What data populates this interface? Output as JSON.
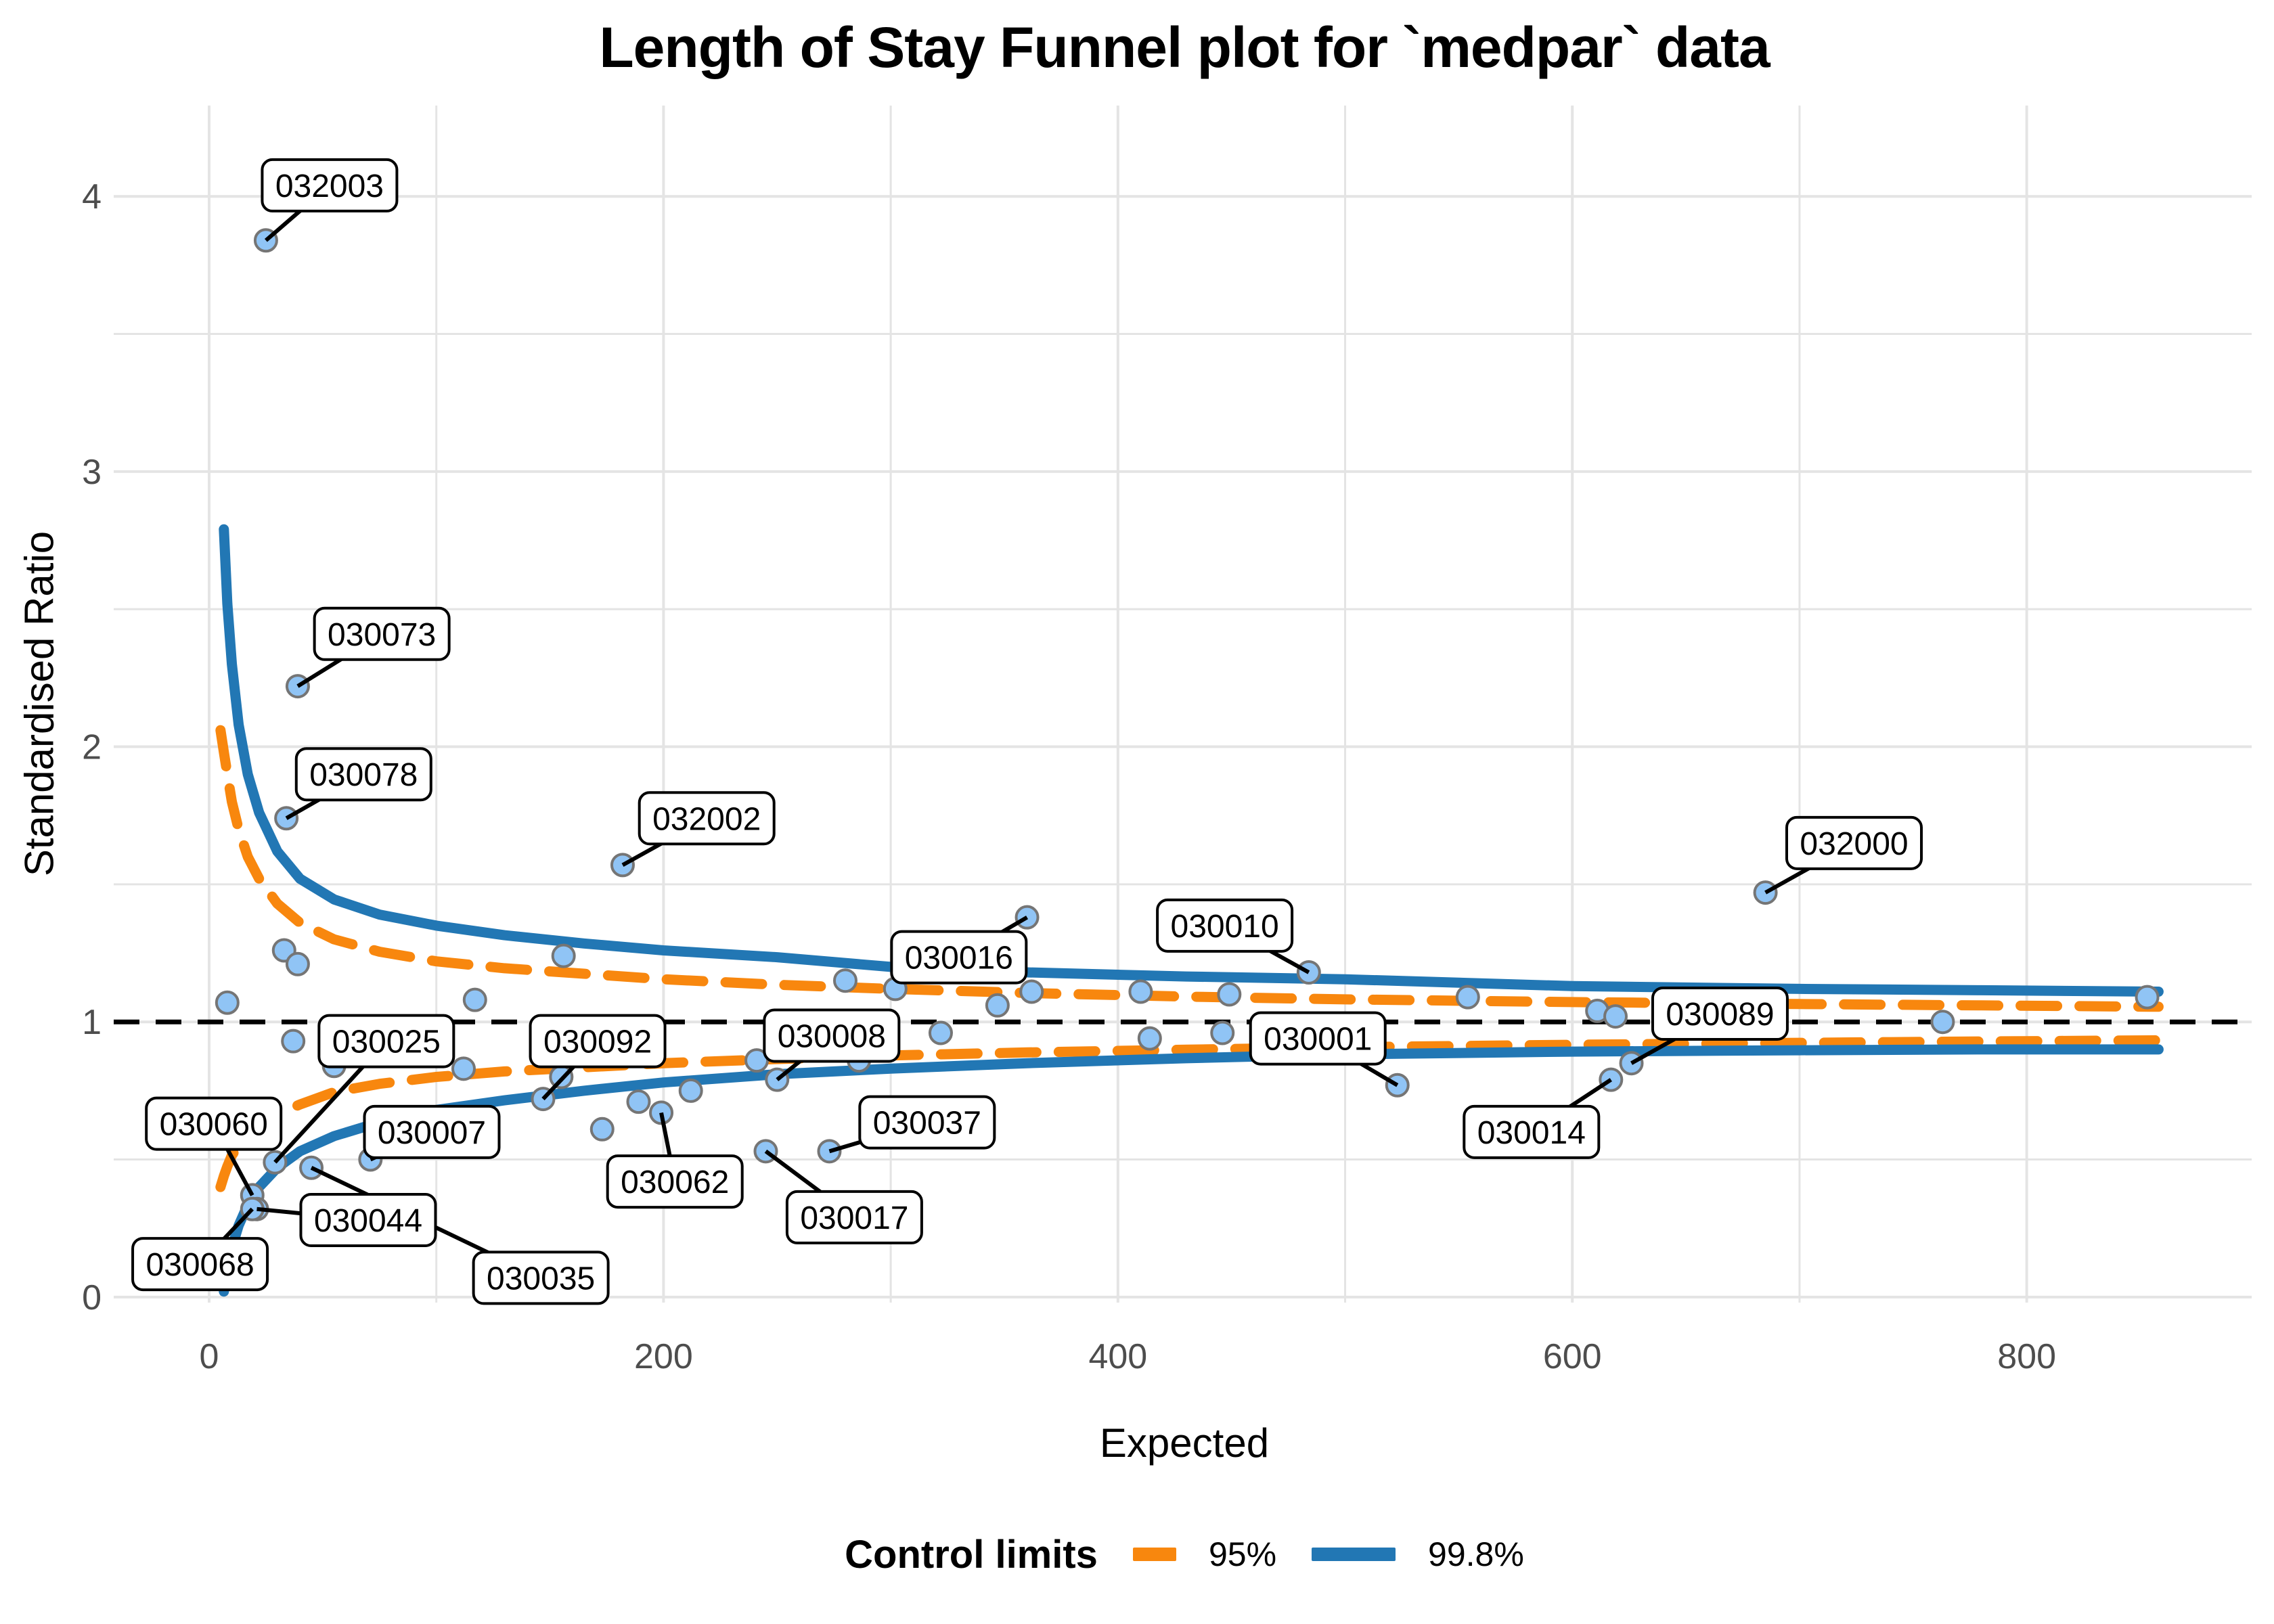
{
  "title": "Length of Stay Funnel plot for `medpar` data",
  "axes": {
    "x": {
      "label": "Expected",
      "ticks": [
        "0",
        "200",
        "400",
        "600",
        "800"
      ],
      "tick_values": [
        0,
        200,
        400,
        600,
        800
      ],
      "minor_ticks": [
        100,
        300,
        500,
        700
      ],
      "range": [
        -42,
        899
      ]
    },
    "y": {
      "label": "Standardised Ratio",
      "ticks": [
        "0",
        "1",
        "2",
        "3",
        "4"
      ],
      "tick_values": [
        0,
        1,
        2,
        3,
        4
      ],
      "minor_ticks": [
        0.5,
        1.5,
        2.5,
        3.5
      ],
      "range": [
        -0.02,
        4.33
      ]
    }
  },
  "legend": {
    "title": "Control limits",
    "items": [
      {
        "label": "95%",
        "color": "#F8870E",
        "pattern": "dashed"
      },
      {
        "label": "99.8%",
        "color": "#2277B4",
        "pattern": "solid"
      }
    ]
  },
  "style": {
    "point_fill": "#90C4F5",
    "point_stroke": "#757575",
    "grid_color": "#E4E4E4",
    "tick_text_color": "#4D4D4D",
    "reference_line_color": "#000000",
    "label_box_fill": "#FFFFFF",
    "label_box_stroke": "#000000"
  },
  "chart_data": {
    "type": "scatter",
    "title": "Length of Stay Funnel plot for `medpar` data",
    "xlabel": "Expected",
    "ylabel": "Standardised Ratio",
    "xlim": [
      -42,
      899
    ],
    "ylim": [
      -0.02,
      4.33
    ],
    "grid": true,
    "legend_position": "bottom",
    "reference_line_y": 1,
    "points": [
      {
        "id": "032003",
        "x": 25,
        "y": 3.84,
        "lx": 53,
        "ly": 4.04
      },
      {
        "id": "030073",
        "x": 39,
        "y": 2.22,
        "lx": 76,
        "ly": 2.41
      },
      {
        "id": "030078",
        "x": 34,
        "y": 1.74,
        "lx": 68,
        "ly": 1.9
      },
      {
        "id": "032002",
        "x": 182,
        "y": 1.57,
        "lx": 219,
        "ly": 1.74
      },
      {
        "id": "030016",
        "x": 360,
        "y": 1.38,
        "lx": 330,
        "ly": 1.235
      },
      {
        "id": "030010",
        "x": 484,
        "y": 1.18,
        "lx": 447,
        "ly": 1.35
      },
      {
        "id": "032000",
        "x": 685,
        "y": 1.47,
        "lx": 724,
        "ly": 1.65
      },
      {
        "id": "030025",
        "x": 29,
        "y": 0.49,
        "lx": 78,
        "ly": 0.93
      },
      {
        "id": "030092",
        "x": 147,
        "y": 0.72,
        "lx": 171,
        "ly": 0.93
      },
      {
        "id": "030008",
        "x": 250,
        "y": 0.79,
        "lx": 274,
        "ly": 0.95
      },
      {
        "id": "030001",
        "x": 523,
        "y": 0.77,
        "lx": 488,
        "ly": 0.94
      },
      {
        "id": "030089",
        "x": 626,
        "y": 0.85,
        "lx": 665,
        "ly": 1.03
      },
      {
        "id": "030060",
        "x": 19,
        "y": 0.37,
        "lx": 2,
        "ly": 0.63
      },
      {
        "id": "030007",
        "x": 71,
        "y": 0.5,
        "lx": 98,
        "ly": 0.6
      },
      {
        "id": "030037",
        "x": 273,
        "y": 0.53,
        "lx": 316,
        "ly": 0.635
      },
      {
        "id": "030014",
        "x": 617,
        "y": 0.79,
        "lx": 582,
        "ly": 0.6
      },
      {
        "id": "030062",
        "x": 199,
        "y": 0.67,
        "lx": 205,
        "ly": 0.42
      },
      {
        "id": "030017",
        "x": 245,
        "y": 0.53,
        "lx": 284,
        "ly": 0.29
      },
      {
        "id": "030044",
        "x": 21,
        "y": 0.32,
        "lx": 70,
        "ly": 0.28
      },
      {
        "id": "030035",
        "x": 45,
        "y": 0.47,
        "lx": 146,
        "ly": 0.07
      },
      {
        "id": "030068",
        "x": 19,
        "y": 0.32,
        "lx": -4,
        "ly": 0.12
      },
      {
        "id": null,
        "x": 8,
        "y": 1.07
      },
      {
        "id": null,
        "x": 33,
        "y": 1.26
      },
      {
        "id": null,
        "x": 39,
        "y": 1.21
      },
      {
        "id": null,
        "x": 37,
        "y": 0.93
      },
      {
        "id": null,
        "x": 55,
        "y": 0.84
      },
      {
        "id": null,
        "x": 112,
        "y": 0.83
      },
      {
        "id": null,
        "x": 117,
        "y": 1.08
      },
      {
        "id": null,
        "x": 156,
        "y": 1.24
      },
      {
        "id": null,
        "x": 155,
        "y": 0.8
      },
      {
        "id": null,
        "x": 173,
        "y": 0.61
      },
      {
        "id": null,
        "x": 189,
        "y": 0.71
      },
      {
        "id": null,
        "x": 212,
        "y": 0.75
      },
      {
        "id": null,
        "x": 241,
        "y": 0.86
      },
      {
        "id": null,
        "x": 286,
        "y": 0.86
      },
      {
        "id": null,
        "x": 280,
        "y": 1.15
      },
      {
        "id": null,
        "x": 302,
        "y": 1.12
      },
      {
        "id": null,
        "x": 322,
        "y": 0.96
      },
      {
        "id": null,
        "x": 347,
        "y": 1.06
      },
      {
        "id": null,
        "x": 362,
        "y": 1.11
      },
      {
        "id": null,
        "x": 410,
        "y": 1.11
      },
      {
        "id": null,
        "x": 414,
        "y": 0.94
      },
      {
        "id": null,
        "x": 446,
        "y": 0.96
      },
      {
        "id": null,
        "x": 449,
        "y": 1.1
      },
      {
        "id": null,
        "x": 554,
        "y": 1.09
      },
      {
        "id": null,
        "x": 611,
        "y": 1.04
      },
      {
        "id": null,
        "x": 619,
        "y": 1.02
      },
      {
        "id": null,
        "x": 763,
        "y": 1.0
      },
      {
        "id": null,
        "x": 853,
        "y": 1.09
      }
    ],
    "control_limits": [
      {
        "name": "95%",
        "pattern": "dashed",
        "color": "#F8870E",
        "upper": [
          [
            5,
            2.06
          ],
          [
            6.5,
            1.98
          ],
          [
            8,
            1.9
          ],
          [
            10,
            1.8
          ],
          [
            13,
            1.7
          ],
          [
            17,
            1.6
          ],
          [
            22,
            1.52
          ],
          [
            30,
            1.43
          ],
          [
            40,
            1.36
          ],
          [
            55,
            1.3
          ],
          [
            75,
            1.255
          ],
          [
            100,
            1.22
          ],
          [
            130,
            1.195
          ],
          [
            165,
            1.175
          ],
          [
            200,
            1.155
          ],
          [
            250,
            1.135
          ],
          [
            300,
            1.12
          ],
          [
            360,
            1.105
          ],
          [
            430,
            1.092
          ],
          [
            500,
            1.082
          ],
          [
            600,
            1.072
          ],
          [
            700,
            1.065
          ],
          [
            780,
            1.06
          ],
          [
            858,
            1.055
          ]
        ],
        "lower": [
          [
            5,
            0.4
          ],
          [
            6.5,
            0.44
          ],
          [
            8,
            0.475
          ],
          [
            10,
            0.515
          ],
          [
            13,
            0.55
          ],
          [
            17,
            0.59
          ],
          [
            22,
            0.625
          ],
          [
            30,
            0.665
          ],
          [
            40,
            0.7
          ],
          [
            55,
            0.745
          ],
          [
            75,
            0.775
          ],
          [
            100,
            0.8
          ],
          [
            130,
            0.82
          ],
          [
            165,
            0.835
          ],
          [
            200,
            0.85
          ],
          [
            250,
            0.865
          ],
          [
            300,
            0.878
          ],
          [
            360,
            0.889
          ],
          [
            430,
            0.899
          ],
          [
            500,
            0.908
          ],
          [
            600,
            0.917
          ],
          [
            700,
            0.924
          ],
          [
            780,
            0.929
          ],
          [
            858,
            0.933
          ]
        ]
      },
      {
        "name": "99.8%",
        "pattern": "solid",
        "color": "#2277B4",
        "upper": [
          [
            6.5,
            2.79
          ],
          [
            8,
            2.52
          ],
          [
            10,
            2.3
          ],
          [
            13,
            2.08
          ],
          [
            17,
            1.9
          ],
          [
            22,
            1.76
          ],
          [
            30,
            1.62
          ],
          [
            40,
            1.52
          ],
          [
            55,
            1.445
          ],
          [
            75,
            1.39
          ],
          [
            100,
            1.35
          ],
          [
            130,
            1.315
          ],
          [
            165,
            1.285
          ],
          [
            200,
            1.26
          ],
          [
            250,
            1.235
          ],
          [
            300,
            1.2
          ],
          [
            360,
            1.18
          ],
          [
            430,
            1.165
          ],
          [
            500,
            1.155
          ],
          [
            600,
            1.13
          ],
          [
            700,
            1.12
          ],
          [
            780,
            1.115
          ],
          [
            858,
            1.11
          ]
        ],
        "lower": [
          [
            6.5,
            0.02
          ],
          [
            8,
            0.1
          ],
          [
            10,
            0.18
          ],
          [
            13,
            0.26
          ],
          [
            17,
            0.335
          ],
          [
            22,
            0.4
          ],
          [
            30,
            0.47
          ],
          [
            40,
            0.53
          ],
          [
            55,
            0.585
          ],
          [
            75,
            0.635
          ],
          [
            100,
            0.68
          ],
          [
            130,
            0.715
          ],
          [
            165,
            0.75
          ],
          [
            200,
            0.78
          ],
          [
            250,
            0.81
          ],
          [
            300,
            0.83
          ],
          [
            360,
            0.85
          ],
          [
            430,
            0.868
          ],
          [
            500,
            0.882
          ],
          [
            600,
            0.892
          ],
          [
            700,
            0.897
          ],
          [
            780,
            0.9
          ],
          [
            858,
            0.9
          ]
        ]
      }
    ]
  }
}
